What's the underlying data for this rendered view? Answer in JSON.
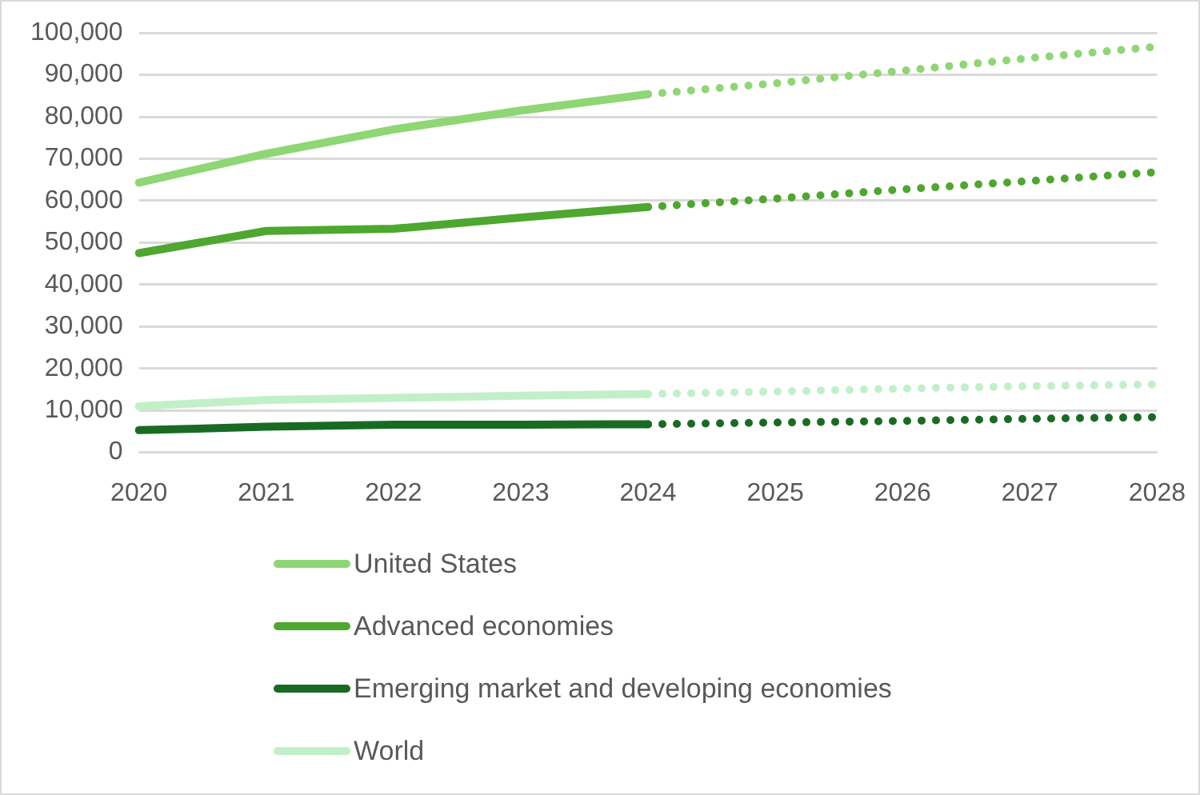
{
  "chart_data": {
    "type": "line",
    "categories": [
      "2020",
      "2021",
      "2022",
      "2023",
      "2024",
      "2025",
      "2026",
      "2027",
      "2028"
    ],
    "series": [
      {
        "name": "United States",
        "color": "#8fd674",
        "line_style": "solid",
        "values": [
          64300,
          71200,
          77000,
          81500,
          85400,
          null,
          null,
          null,
          null
        ]
      },
      {
        "name": "Advanced economies",
        "color": "#4ea72e",
        "line_style": "solid",
        "values": [
          47500,
          52800,
          53300,
          56000,
          58500,
          null,
          null,
          null,
          null
        ]
      },
      {
        "name": "Emerging market and developing economies",
        "color": "#196b24",
        "line_style": "solid",
        "values": [
          5300,
          6100,
          6600,
          6600,
          6700,
          null,
          null,
          null,
          null
        ]
      },
      {
        "name": "World",
        "color": "#c1f0c8",
        "line_style": "solid",
        "values": [
          11000,
          12500,
          13000,
          13500,
          13900,
          null,
          null,
          null,
          null
        ]
      },
      {
        "color": "#8fd674",
        "line_style": "dotted",
        "values": [
          null,
          null,
          null,
          null,
          85400,
          88000,
          91000,
          94000,
          96700
        ]
      },
      {
        "color": "#4ea72e",
        "line_style": "dotted",
        "values": [
          null,
          null,
          null,
          null,
          58500,
          60500,
          62700,
          64700,
          66800
        ]
      },
      {
        "color": "#196b24",
        "line_style": "dotted",
        "values": [
          null,
          null,
          null,
          null,
          6700,
          7100,
          7500,
          8000,
          8400
        ]
      },
      {
        "color": "#c1f0c8",
        "line_style": "dotted",
        "values": [
          null,
          null,
          null,
          null,
          13900,
          14500,
          15200,
          15800,
          16200
        ]
      }
    ],
    "ylim": [
      0,
      100000
    ],
    "yticks": [
      0,
      {
        "value": 10000,
        "label": "10,000"
      },
      {
        "value": 20000,
        "label": "20,000"
      },
      {
        "value": 30000,
        "label": "30,000"
      },
      {
        "value": 40000,
        "label": "40,000"
      },
      {
        "value": 50000,
        "label": "50,000"
      },
      {
        "value": 60000,
        "label": "60,000"
      },
      {
        "value": 70000,
        "label": "70,000"
      },
      {
        "value": 80000,
        "label": "80,000"
      },
      {
        "value": 90000,
        "label": "90,000"
      },
      {
        "value": 100000,
        "label": "100,000"
      }
    ],
    "grid": "y",
    "legend": "bottom",
    "marker": "none"
  }
}
